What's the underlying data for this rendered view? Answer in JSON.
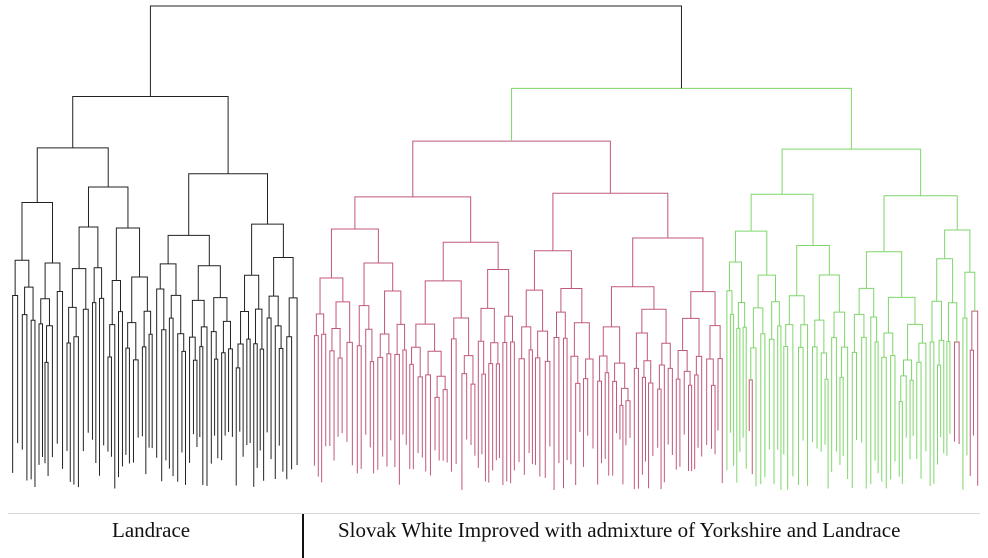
{
  "figure": {
    "group_labels": {
      "left": "Landrace",
      "right": "Slovak White Improved with admixture of Yorkshire and Landrace"
    },
    "colors": {
      "landrace_branch": "#222222",
      "swi_branch": "#7fd66a",
      "admixed_branch": "#c0587a",
      "background": "#ffffff"
    }
  }
}
